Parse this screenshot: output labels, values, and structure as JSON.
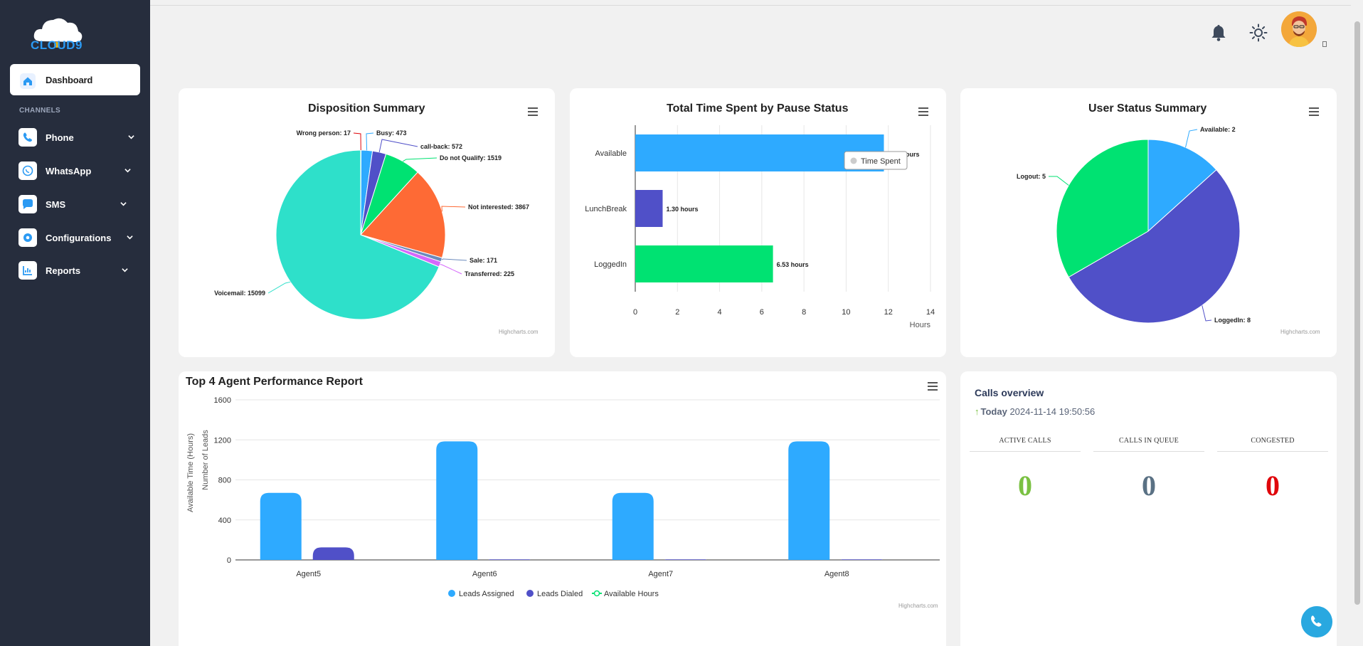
{
  "app": {
    "logo_text": "CLOUD9"
  },
  "sidebar": {
    "active": {
      "label": "Dashboard",
      "icon": "home-icon"
    },
    "section_label": "CHANNELS",
    "items": [
      {
        "label": "Phone",
        "icon": "phone-icon"
      },
      {
        "label": "WhatsApp",
        "icon": "whatsapp-icon"
      },
      {
        "label": "SMS",
        "icon": "sms-icon"
      },
      {
        "label": "Configurations",
        "icon": "gear-icon"
      },
      {
        "label": "Reports",
        "icon": "reports-icon"
      }
    ]
  },
  "header": {
    "icons": [
      "bell-icon",
      "sun-icon",
      "avatar"
    ]
  },
  "colors": {
    "sidebar_bg": "#262d3d",
    "blue": "#2eaaff",
    "purple": "#5050c8",
    "green": "#00e272",
    "orange": "#fe6a35",
    "teal": "#2ee0ca",
    "pink": "#d568fb",
    "calls_active": "#7ac142",
    "calls_queue": "#5a7184",
    "calls_congested": "#e0060b"
  },
  "credit": "Highcharts.com",
  "disposition": {
    "title": "Disposition Summary",
    "labels": [
      "Wrong person: 17",
      "Busy: 473",
      "call-back: 572",
      "Do not Qualify: 1519",
      "Not interested: 3867",
      "Sale: 171",
      "Transferred: 225",
      "Voicemail: 15099"
    ]
  },
  "pause_status": {
    "title": "Total Time Spent by Pause Status",
    "bar_labels": [
      "11.79 hours",
      "1.30 hours",
      "6.53 hours"
    ],
    "tooltip": "Time Spent",
    "tooltip_visible_label": "ours",
    "xaxis_title": "Hours"
  },
  "user_status": {
    "title": "User Status Summary",
    "labels": [
      "Available: 2",
      "LoggedIn: 8",
      "Logout: 5"
    ]
  },
  "agent_perf": {
    "title": "Top 4 Agent Performance Report",
    "yaxis_title_left": "Available Time (Hours)",
    "yaxis_title_right": "Number of Leads",
    "legend": [
      "Leads Assigned",
      "Leads Dialed",
      "Available Hours"
    ]
  },
  "calls_overview": {
    "title": "Calls overview",
    "today_label": "Today",
    "timestamp": "2024-11-14 19:50:56",
    "columns": [
      {
        "label": "ACTIVE CALLS",
        "value": "0"
      },
      {
        "label": "CALLS IN QUEUE",
        "value": "0"
      },
      {
        "label": "CONGESTED",
        "value": "0"
      }
    ]
  },
  "chart_data": [
    {
      "type": "pie",
      "title": "Disposition Summary",
      "slices": [
        {
          "name": "Wrong person",
          "value": 17,
          "color": "#e0060b"
        },
        {
          "name": "Busy",
          "value": 473,
          "color": "#2eaaff"
        },
        {
          "name": "call-back",
          "value": 572,
          "color": "#5050c8"
        },
        {
          "name": "Do not Qualify",
          "value": 1519,
          "color": "#00e272"
        },
        {
          "name": "Not interested",
          "value": 3867,
          "color": "#fe6a35"
        },
        {
          "name": "Sale",
          "value": 171,
          "color": "#6b8abc"
        },
        {
          "name": "Transferred",
          "value": 225,
          "color": "#d568fb"
        },
        {
          "name": "Voicemail",
          "value": 15099,
          "color": "#2ee0ca"
        }
      ]
    },
    {
      "type": "bar",
      "title": "Total Time Spent by Pause Status",
      "categories": [
        "Available",
        "LunchBreak",
        "LoggedIn"
      ],
      "values": [
        11.79,
        1.3,
        6.53
      ],
      "colors": [
        "#2eaaff",
        "#5050c8",
        "#00e272"
      ],
      "xlim": [
        0,
        14
      ],
      "ticks": [
        0,
        2,
        4,
        6,
        8,
        10,
        12,
        14
      ],
      "xlabel": "Hours",
      "grid": true
    },
    {
      "type": "pie",
      "title": "User Status Summary",
      "slices": [
        {
          "name": "Available",
          "value": 2,
          "color": "#2eaaff"
        },
        {
          "name": "LoggedIn",
          "value": 8,
          "color": "#5050c8"
        },
        {
          "name": "Logout",
          "value": 5,
          "color": "#00e272"
        }
      ]
    },
    {
      "type": "bar",
      "title": "Top 4 Agent Performance Report",
      "categories": [
        "Agent5",
        "Agent6",
        "Agent7",
        "Agent8"
      ],
      "series": [
        {
          "name": "Leads Assigned",
          "values": [
            670,
            1185,
            670,
            1185
          ],
          "color": "#2eaaff"
        },
        {
          "name": "Leads Dialed",
          "values": [
            125,
            6,
            6,
            6
          ],
          "color": "#5050c8"
        },
        {
          "name": "Available Hours",
          "values": [
            0,
            0,
            0,
            0
          ],
          "color": "#00e272"
        }
      ],
      "ylim": [
        0,
        1600
      ],
      "ticks": [
        0,
        400,
        800,
        1200,
        1600
      ],
      "legend": "bottom",
      "grid": true
    }
  ]
}
